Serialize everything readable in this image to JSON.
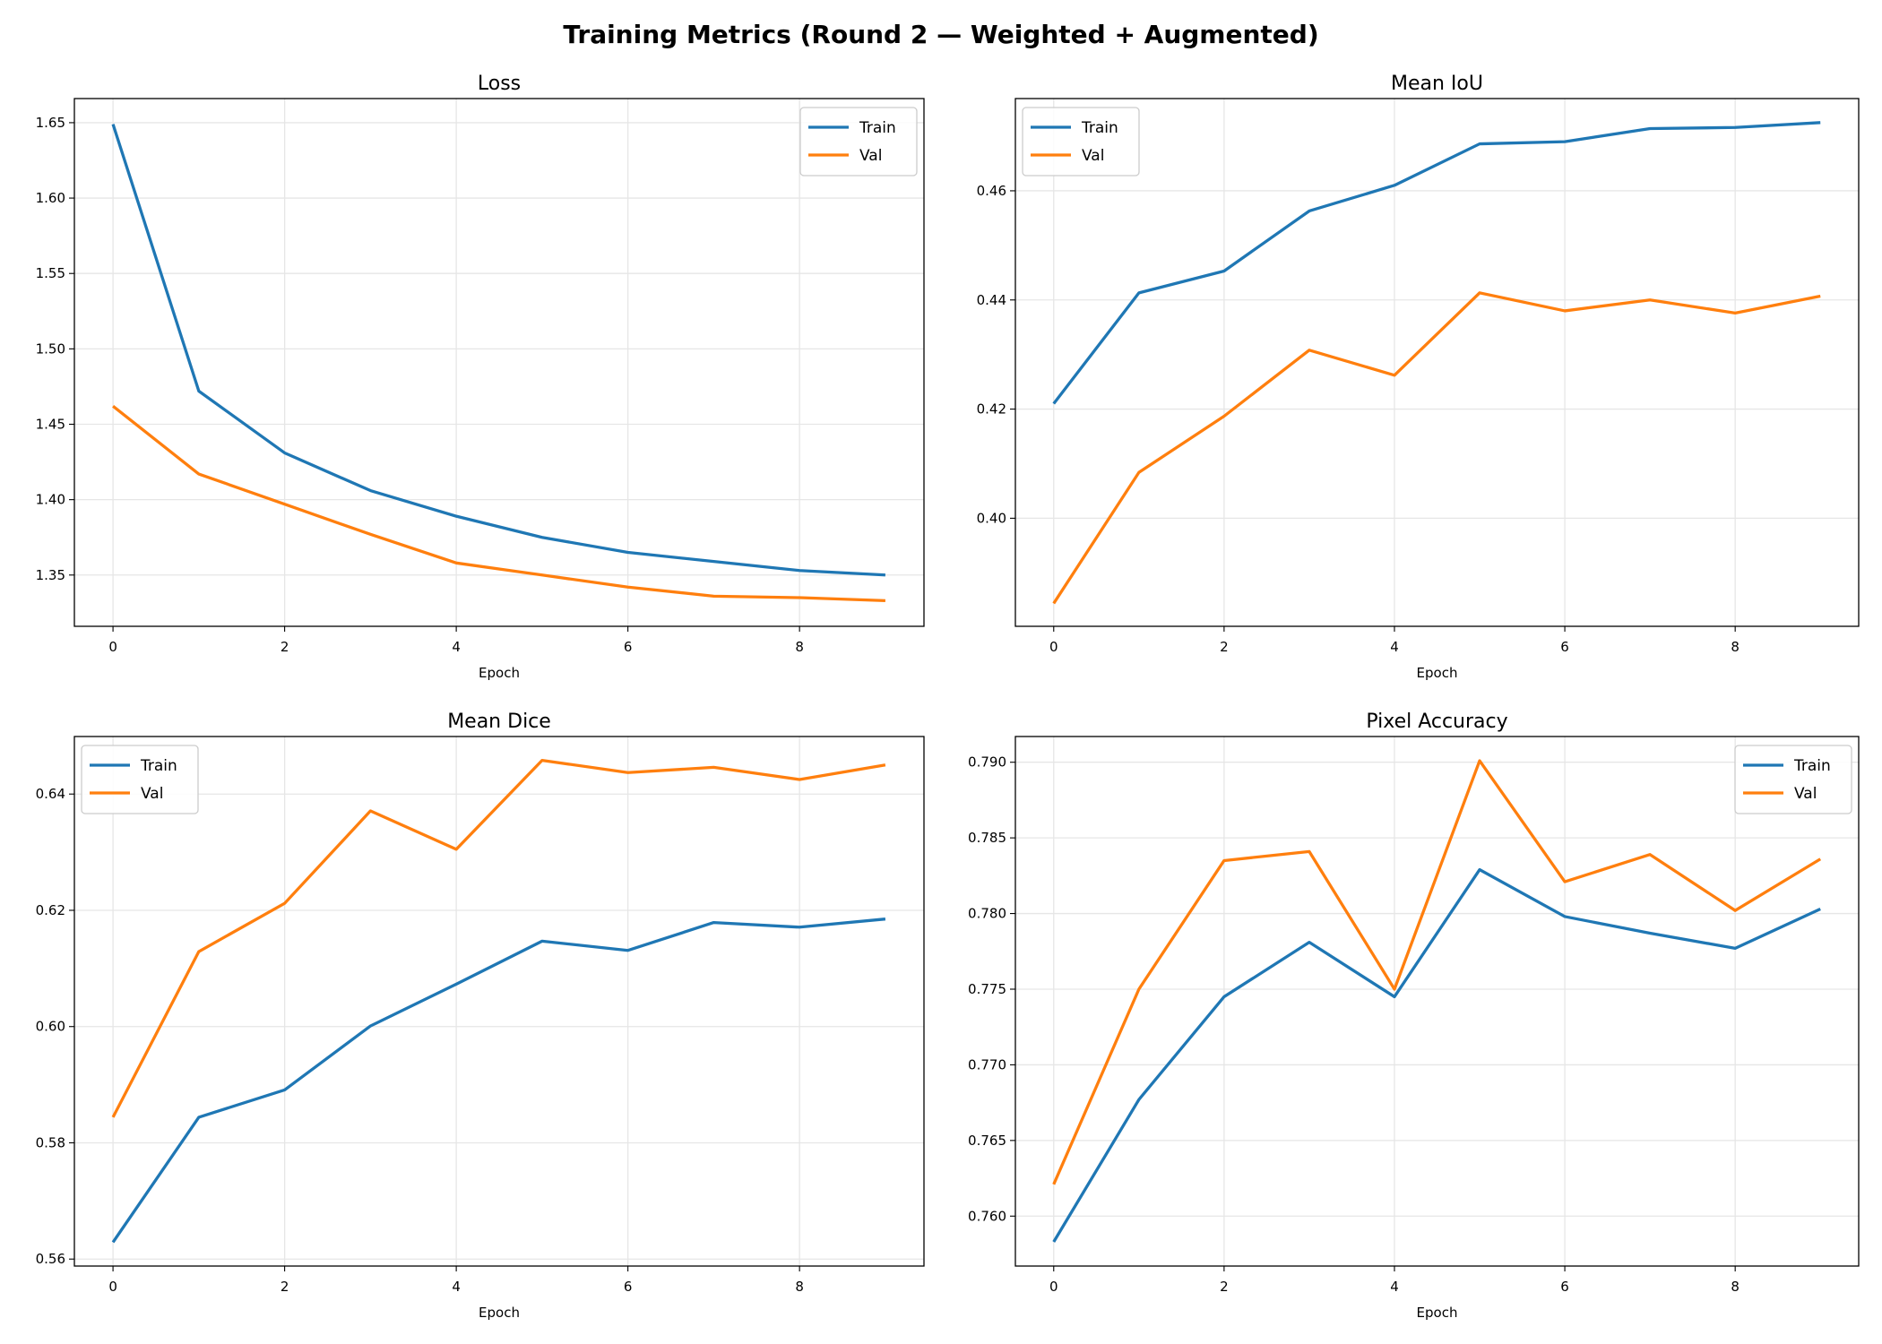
{
  "title": "Training Metrics (Round 2 — Weighted + Augmented)",
  "colors": {
    "train": "#1f77b4",
    "val": "#ff7f0e",
    "grid": "#e6e6e6"
  },
  "chart_data": [
    {
      "type": "line",
      "title": "Loss",
      "xlabel": "Epoch",
      "ylabel": "",
      "x": [
        0,
        1,
        2,
        3,
        4,
        5,
        6,
        7,
        8,
        9
      ],
      "xticks": [
        "0",
        "2",
        "4",
        "6",
        "8"
      ],
      "yticks": [
        "1.35",
        "1.40",
        "1.45",
        "1.50",
        "1.55",
        "1.60",
        "1.65"
      ],
      "xlim": [
        -0.45,
        9.45
      ],
      "ylim": [
        1.316,
        1.666
      ],
      "grid": true,
      "legend": "top-right",
      "series": [
        {
          "name": "Train",
          "values": [
            1.649,
            1.472,
            1.431,
            1.406,
            1.389,
            1.375,
            1.365,
            1.359,
            1.353,
            1.35
          ]
        },
        {
          "name": "Val",
          "values": [
            1.462,
            1.417,
            1.397,
            1.377,
            1.358,
            1.35,
            1.342,
            1.336,
            1.335,
            1.333
          ]
        }
      ]
    },
    {
      "type": "line",
      "title": "Mean IoU",
      "xlabel": "Epoch",
      "ylabel": "",
      "x": [
        0,
        1,
        2,
        3,
        4,
        5,
        6,
        7,
        8,
        9
      ],
      "xticks": [
        "0",
        "2",
        "4",
        "6",
        "8"
      ],
      "yticks": [
        "0.40",
        "0.42",
        "0.44",
        "0.46"
      ],
      "xlim": [
        -0.45,
        9.45
      ],
      "ylim": [
        0.3802,
        0.4769
      ],
      "grid": true,
      "legend": "top-left",
      "series": [
        {
          "name": "Train",
          "values": [
            0.421,
            0.4413,
            0.4453,
            0.4563,
            0.461,
            0.4686,
            0.469,
            0.4714,
            0.4716,
            0.4725
          ]
        },
        {
          "name": "Val",
          "values": [
            0.3844,
            0.4084,
            0.4187,
            0.4308,
            0.4262,
            0.4413,
            0.438,
            0.44,
            0.4376,
            0.4407
          ]
        }
      ]
    },
    {
      "type": "line",
      "title": "Mean Dice",
      "xlabel": "Epoch",
      "ylabel": "",
      "x": [
        0,
        1,
        2,
        3,
        4,
        5,
        6,
        7,
        8,
        9
      ],
      "xticks": [
        "0",
        "2",
        "4",
        "6",
        "8"
      ],
      "yticks": [
        "0.56",
        "0.58",
        "0.60",
        "0.62",
        "0.64"
      ],
      "xlim": [
        -0.45,
        9.45
      ],
      "ylim": [
        0.5588,
        0.6499
      ],
      "grid": true,
      "legend": "top-left",
      "series": [
        {
          "name": "Train",
          "values": [
            0.5629,
            0.5844,
            0.5891,
            0.6001,
            0.6073,
            0.6147,
            0.6131,
            0.6179,
            0.6171,
            0.6185
          ]
        },
        {
          "name": "Val",
          "values": [
            0.5844,
            0.6129,
            0.6212,
            0.6371,
            0.6305,
            0.6458,
            0.6437,
            0.6446,
            0.6425,
            0.645
          ]
        }
      ]
    },
    {
      "type": "line",
      "title": "Pixel Accuracy",
      "xlabel": "Epoch",
      "ylabel": "",
      "x": [
        0,
        1,
        2,
        3,
        4,
        5,
        6,
        7,
        8,
        9
      ],
      "xticks": [
        "0",
        "2",
        "4",
        "6",
        "8"
      ],
      "yticks": [
        "0.760",
        "0.765",
        "0.770",
        "0.775",
        "0.780",
        "0.785",
        "0.790"
      ],
      "xlim": [
        -0.45,
        9.45
      ],
      "ylim": [
        0.7567,
        0.7917
      ],
      "grid": true,
      "legend": "top-right",
      "series": [
        {
          "name": "Train",
          "values": [
            0.7583,
            0.7677,
            0.7745,
            0.7781,
            0.7745,
            0.7829,
            0.7798,
            0.7787,
            0.7777,
            0.7803
          ]
        },
        {
          "name": "Val",
          "values": [
            0.7621,
            0.775,
            0.7835,
            0.7841,
            0.775,
            0.7901,
            0.7821,
            0.7839,
            0.7802,
            0.7836
          ]
        }
      ]
    }
  ]
}
